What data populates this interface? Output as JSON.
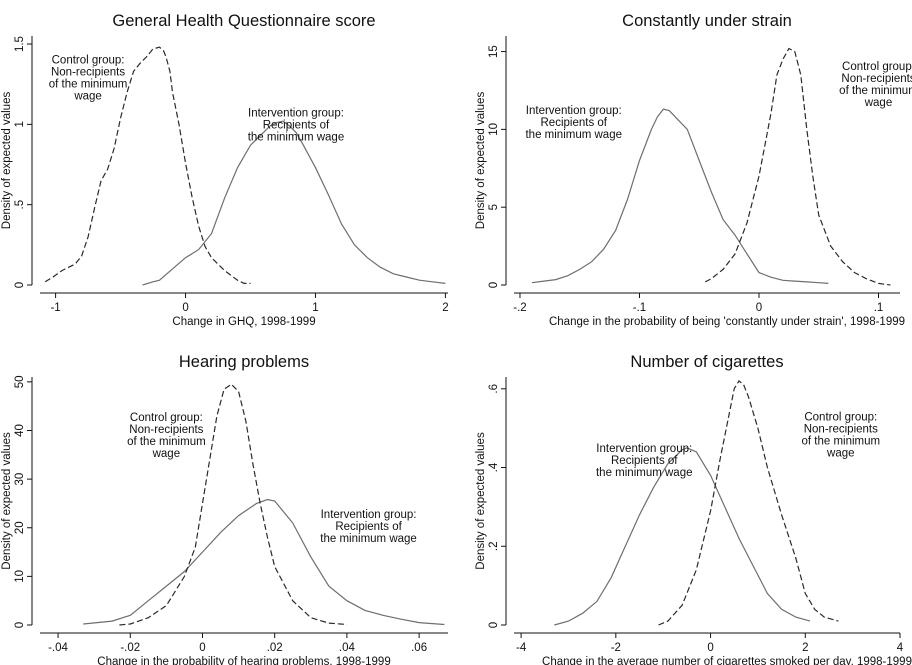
{
  "chart_data": [
    {
      "type": "line",
      "title": "General Health Questionnaire score",
      "xlabel": "Change in GHQ, 1998-1999",
      "ylabel": "Density of expected values",
      "xlim": [
        -1.12,
        2.02
      ],
      "ylim": [
        0,
        1.55
      ],
      "xticks": [
        -1,
        0,
        1,
        2
      ],
      "xtick_labels": [
        "-1",
        "0",
        "1",
        "2"
      ],
      "yticks": [
        0,
        0.5,
        1,
        1.5
      ],
      "ytick_labels": [
        "0",
        ".5",
        "1",
        "1.5"
      ],
      "annotations": [
        {
          "lines": [
            "Control group:",
            "Non-recipients",
            "of the minimum",
            "wage"
          ],
          "x": -0.75,
          "y": 1.38
        },
        {
          "lines": [
            "Intervention group:",
            "Recipients of",
            "the minimum wage"
          ],
          "x": 0.85,
          "y": 1.05
        }
      ],
      "series": [
        {
          "style": "dashed",
          "x": [
            -1.08,
            -1.02,
            -0.95,
            -0.85,
            -0.8,
            -0.75,
            -0.7,
            -0.65,
            -0.6,
            -0.55,
            -0.5,
            -0.45,
            -0.4,
            -0.35,
            -0.3,
            -0.25,
            -0.2,
            -0.17,
            -0.15,
            -0.12,
            -0.1,
            -0.05,
            0.0,
            0.05,
            0.1,
            0.15,
            0.2,
            0.25,
            0.3,
            0.35,
            0.4,
            0.45,
            0.5
          ],
          "y": [
            0.02,
            0.05,
            0.09,
            0.13,
            0.18,
            0.3,
            0.48,
            0.65,
            0.72,
            0.85,
            1.04,
            1.2,
            1.33,
            1.38,
            1.42,
            1.47,
            1.48,
            1.46,
            1.42,
            1.33,
            1.2,
            1.0,
            0.76,
            0.55,
            0.37,
            0.24,
            0.17,
            0.13,
            0.09,
            0.06,
            0.03,
            0.01,
            0.01
          ]
        },
        {
          "style": "solid",
          "x": [
            -0.33,
            -0.25,
            -0.2,
            -0.1,
            0.0,
            0.1,
            0.2,
            0.3,
            0.4,
            0.5,
            0.6,
            0.65,
            0.7,
            0.75,
            0.8,
            0.85,
            0.9,
            1.0,
            1.1,
            1.2,
            1.3,
            1.4,
            1.5,
            1.6,
            1.7,
            1.8,
            1.9,
            2.0
          ],
          "y": [
            0.0,
            0.02,
            0.03,
            0.1,
            0.17,
            0.22,
            0.32,
            0.54,
            0.73,
            0.87,
            0.95,
            0.99,
            1.01,
            1.02,
            0.99,
            0.95,
            0.88,
            0.73,
            0.56,
            0.38,
            0.25,
            0.17,
            0.11,
            0.07,
            0.05,
            0.03,
            0.02,
            0.01
          ]
        }
      ]
    },
    {
      "type": "line",
      "title": "Constantly under strain",
      "xlabel": "Change in the probability of being 'constantly under strain', 1998-1999",
      "ylabel": "Density of expected values",
      "xlim": [
        -0.205,
        0.118
      ],
      "ylim": [
        0,
        16
      ],
      "xticks": [
        -0.2,
        -0.1,
        0,
        0.1
      ],
      "xtick_labels": [
        "-.2",
        "-.1",
        "0",
        ".1"
      ],
      "yticks": [
        0,
        5,
        10,
        15
      ],
      "ytick_labels": [
        "0",
        "5",
        "10",
        "15"
      ],
      "annotations": [
        {
          "lines": [
            "Control group:",
            "Non-recipients",
            "of the minimum",
            "wage"
          ],
          "x": 0.1,
          "y": 13.8
        },
        {
          "lines": [
            "Intervention group:",
            "Recipients of",
            "the minimum wage"
          ],
          "x": -0.155,
          "y": 11.0
        }
      ],
      "series": [
        {
          "style": "solid",
          "x": [
            -0.19,
            -0.18,
            -0.17,
            -0.16,
            -0.15,
            -0.14,
            -0.13,
            -0.12,
            -0.11,
            -0.1,
            -0.09,
            -0.085,
            -0.08,
            -0.075,
            -0.07,
            -0.06,
            -0.05,
            -0.04,
            -0.03,
            -0.02,
            -0.01,
            0.0,
            0.01,
            0.02,
            0.03,
            0.04,
            0.05,
            0.058
          ],
          "y": [
            0.15,
            0.25,
            0.35,
            0.6,
            1.0,
            1.5,
            2.3,
            3.5,
            5.5,
            8.0,
            10.0,
            10.8,
            11.3,
            11.2,
            10.8,
            10.0,
            8.0,
            6.0,
            4.2,
            3.2,
            2.0,
            0.8,
            0.5,
            0.3,
            0.25,
            0.2,
            0.15,
            0.1
          ]
        },
        {
          "style": "dashed",
          "x": [
            -0.045,
            -0.04,
            -0.03,
            -0.02,
            -0.01,
            0.0,
            0.01,
            0.015,
            0.02,
            0.025,
            0.03,
            0.035,
            0.04,
            0.045,
            0.05,
            0.06,
            0.07,
            0.08,
            0.09,
            0.1,
            0.11
          ],
          "y": [
            0.2,
            0.4,
            1.0,
            2.0,
            4.0,
            7.0,
            11.0,
            13.5,
            14.5,
            15.2,
            15.0,
            13.5,
            10.0,
            7.0,
            4.5,
            2.5,
            1.5,
            0.8,
            0.4,
            0.1,
            0.0
          ]
        }
      ]
    },
    {
      "type": "line",
      "title": "Hearing problems",
      "xlabel": "Change in the probability of hearing problems, 1998-1999",
      "ylabel": "Density of expected values",
      "xlim": [
        -0.045,
        0.068
      ],
      "ylim": [
        0,
        51
      ],
      "xticks": [
        -0.04,
        -0.02,
        0,
        0.02,
        0.04,
        0.06
      ],
      "xtick_labels": [
        "-.04",
        "-.02",
        "0",
        ".02",
        ".04",
        ".06"
      ],
      "yticks": [
        0,
        10,
        20,
        30,
        40,
        50
      ],
      "ytick_labels": [
        "0",
        "10",
        "20",
        "30",
        "40",
        "50"
      ],
      "annotations": [
        {
          "lines": [
            "Control group:",
            "Non-recipients",
            "of the minimum",
            "wage"
          ],
          "x": -0.01,
          "y": 42.0
        },
        {
          "lines": [
            "Intervention group:",
            "Recipients of",
            "the minimum wage"
          ],
          "x": 0.046,
          "y": 22.0
        }
      ],
      "series": [
        {
          "style": "solid",
          "x": [
            -0.033,
            -0.025,
            -0.02,
            -0.015,
            -0.01,
            -0.005,
            0.0,
            0.005,
            0.01,
            0.015,
            0.018,
            0.02,
            0.025,
            0.03,
            0.035,
            0.04,
            0.045,
            0.05,
            0.055,
            0.06,
            0.067
          ],
          "y": [
            0.2,
            0.8,
            2.0,
            5.0,
            8.0,
            11.0,
            15.0,
            19.0,
            22.5,
            25.0,
            25.8,
            25.5,
            21.0,
            14.0,
            8.0,
            5.0,
            3.0,
            2.0,
            1.2,
            0.5,
            0.1
          ]
        },
        {
          "style": "dashed",
          "x": [
            -0.023,
            -0.02,
            -0.015,
            -0.01,
            -0.005,
            -0.002,
            0.0,
            0.002,
            0.004,
            0.006,
            0.008,
            0.01,
            0.012,
            0.014,
            0.016,
            0.018,
            0.02,
            0.025,
            0.03,
            0.035,
            0.04
          ],
          "y": [
            0.0,
            0.2,
            1.5,
            4.0,
            10.0,
            16.0,
            25.0,
            34.0,
            43.0,
            48.5,
            49.5,
            48.0,
            42.0,
            33.0,
            25.0,
            18.0,
            12.0,
            5.0,
            1.5,
            0.4,
            0.1
          ]
        }
      ]
    },
    {
      "type": "line",
      "title": "Number of cigarettes",
      "xlabel": "Change in the average number of cigarettes smoked per day, 1998-1999",
      "ylabel": "Density of expected values",
      "xlim": [
        -4.15,
        4.0
      ],
      "ylim": [
        0,
        0.63
      ],
      "xticks": [
        -4,
        -2,
        0,
        2,
        4
      ],
      "xtick_labels": [
        "-4",
        "-2",
        "0",
        "2",
        "4"
      ],
      "yticks": [
        0,
        0.2,
        0.4,
        0.6
      ],
      "ytick_labels": [
        "0",
        ".2",
        ".4",
        ".6"
      ],
      "annotations": [
        {
          "lines": [
            "Control group:",
            "Non-recipients",
            "of the minimum",
            "wage"
          ],
          "x": 2.75,
          "y": 0.52
        },
        {
          "lines": [
            "Intervention group:",
            "Recipients of",
            "the minimum wage"
          ],
          "x": -1.4,
          "y": 0.44
        }
      ],
      "series": [
        {
          "style": "solid",
          "x": [
            -3.3,
            -3.0,
            -2.7,
            -2.4,
            -2.1,
            -1.8,
            -1.5,
            -1.2,
            -0.9,
            -0.6,
            -0.5,
            -0.3,
            0.0,
            0.3,
            0.6,
            0.9,
            1.2,
            1.5,
            1.8,
            2.1
          ],
          "y": [
            0.0,
            0.01,
            0.03,
            0.06,
            0.12,
            0.2,
            0.28,
            0.35,
            0.41,
            0.445,
            0.45,
            0.44,
            0.38,
            0.3,
            0.22,
            0.15,
            0.08,
            0.04,
            0.02,
            0.01
          ]
        },
        {
          "style": "dashed",
          "x": [
            -1.1,
            -0.9,
            -0.6,
            -0.3,
            0.0,
            0.2,
            0.4,
            0.5,
            0.6,
            0.7,
            0.8,
            1.0,
            1.2,
            1.5,
            1.8,
            2.0,
            2.2,
            2.4,
            2.7
          ],
          "y": [
            0.0,
            0.01,
            0.05,
            0.14,
            0.29,
            0.42,
            0.54,
            0.6,
            0.62,
            0.61,
            0.58,
            0.5,
            0.4,
            0.28,
            0.17,
            0.08,
            0.04,
            0.02,
            0.01
          ]
        }
      ]
    }
  ]
}
